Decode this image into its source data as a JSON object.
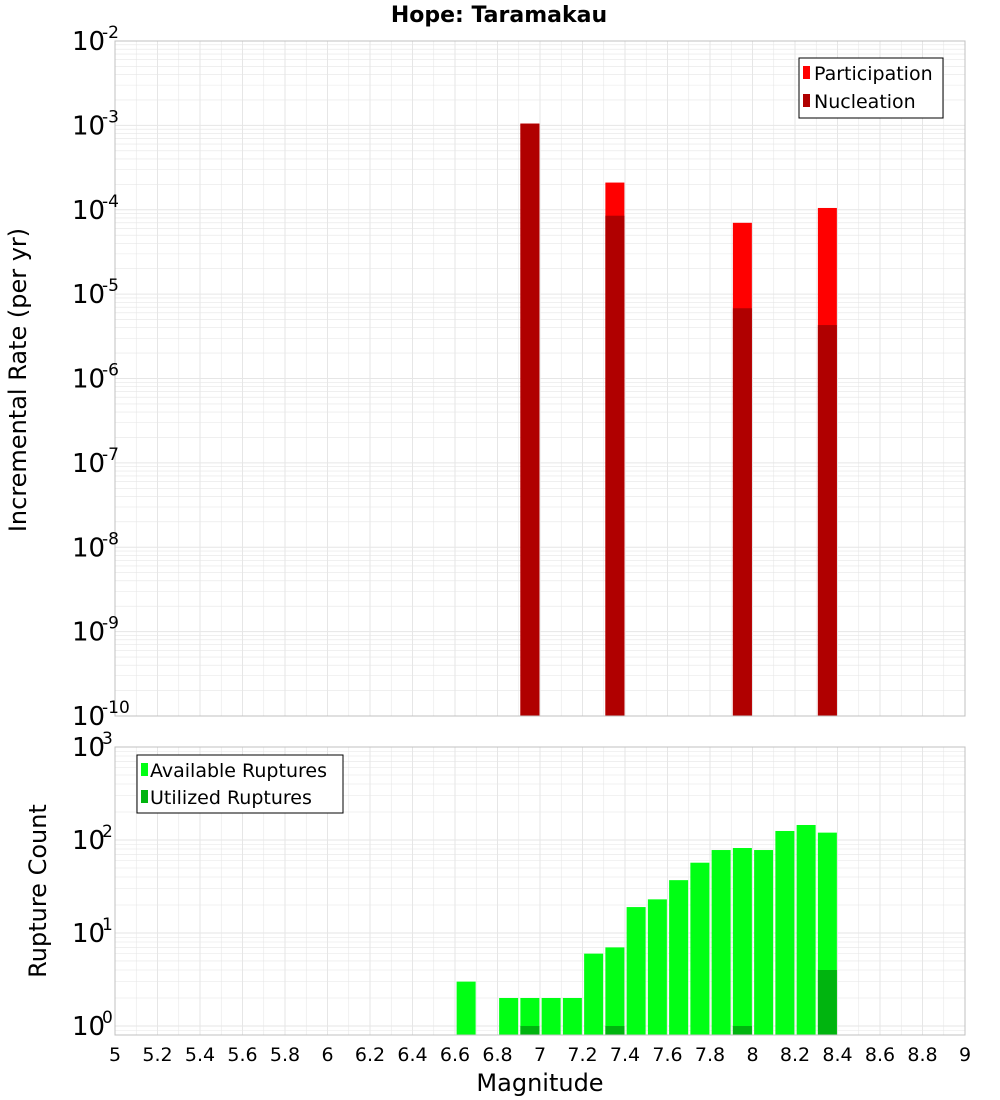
{
  "title": "Hope: Taramakau",
  "xlabel": "Magnitude",
  "colors": {
    "participation": "#ff0000",
    "nucleation": "#b00000",
    "available": "#00ff14",
    "utilized": "#00b40f",
    "grid": "#e6e6e6",
    "frame": "#c0c0c0"
  },
  "chart_data": [
    {
      "type": "bar",
      "ylabel": "Incremental Rate (per yr)",
      "yscale": "log",
      "xlim": [
        5,
        9
      ],
      "ylim": [
        1e-10,
        0.01
      ],
      "ytick_exponents": [
        -10,
        -9,
        -8,
        -7,
        -6,
        -5,
        -4,
        -3,
        -2
      ],
      "legend": {
        "placement": "top-right",
        "entries": [
          "Participation",
          "Nucleation"
        ]
      },
      "series": [
        {
          "name": "Participation",
          "x": [
            6.95,
            7.35,
            7.95,
            8.35
          ],
          "values": [
            0.00105,
            0.00021,
            7e-05,
            0.000105
          ]
        },
        {
          "name": "Nucleation",
          "x": [
            6.95,
            7.35,
            7.95,
            8.35
          ],
          "values": [
            0.00105,
            8.5e-05,
            6.8e-06,
            4.3e-06
          ]
        }
      ]
    },
    {
      "type": "bar",
      "ylabel": "Rupture Count",
      "yscale": "log",
      "xlim": [
        5,
        9
      ],
      "ylim": [
        0.8,
        1000
      ],
      "ytick_exponents": [
        0,
        1,
        2,
        3
      ],
      "legend": {
        "placement": "top-left",
        "entries": [
          "Available Ruptures",
          "Utilized Ruptures"
        ]
      },
      "series": [
        {
          "name": "Available Ruptures",
          "x": [
            6.65,
            6.85,
            6.95,
            7.05,
            7.15,
            7.25,
            7.35,
            7.45,
            7.55,
            7.65,
            7.75,
            7.85,
            7.95,
            8.05,
            8.15,
            8.25,
            8.35
          ],
          "values": [
            3,
            2,
            2,
            2,
            2,
            6,
            7,
            19,
            23,
            37,
            57,
            78,
            82,
            78,
            125,
            145,
            120
          ]
        },
        {
          "name": "Utilized Ruptures",
          "x": [
            6.95,
            7.35,
            7.95,
            8.35
          ],
          "values": [
            1,
            1,
            1,
            4
          ]
        }
      ]
    }
  ],
  "xticks": [
    "5",
    "5.2",
    "5.4",
    "5.6",
    "5.8",
    "6",
    "6.2",
    "6.4",
    "6.6",
    "6.8",
    "7",
    "7.2",
    "7.4",
    "7.6",
    "7.8",
    "8",
    "8.2",
    "8.4",
    "8.6",
    "8.8",
    "9"
  ]
}
